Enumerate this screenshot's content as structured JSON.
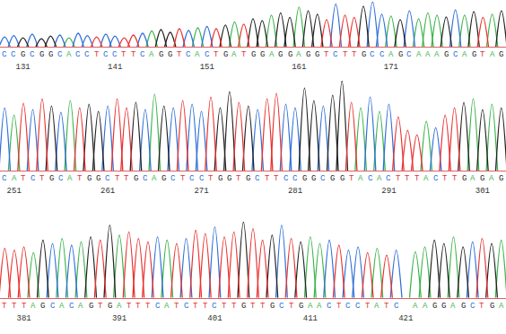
{
  "chart_data": [
    {
      "type": "line",
      "start": 129,
      "bases": "CCGCGGCACCTCCTTCAGGTCACTGATGGAGGAGGTCTTGCCAGCAAAGCAGTAG",
      "values": [
        22,
        25,
        20,
        28,
        18,
        24,
        26,
        20,
        30,
        25,
        22,
        28,
        24,
        20,
        26,
        30,
        35,
        38,
        32,
        40,
        36,
        42,
        45,
        40,
        48,
        55,
        50,
        62,
        58,
        70,
        75,
        65,
        88,
        80,
        72,
        60,
        95,
        70,
        65,
        90,
        100,
        72,
        68,
        60,
        80,
        62,
        75,
        70,
        66,
        82,
        70,
        78,
        65,
        72,
        80
      ],
      "xlim": [
        128.5,
        183.5
      ],
      "xticks": [
        131,
        141,
        151,
        161,
        171
      ],
      "ylim": [
        0,
        100
      ],
      "tick_labels": "x",
      "series": [
        {
          "name": "A",
          "color": "#3cb44b"
        },
        {
          "name": "C",
          "color": "#2e6fd8"
        },
        {
          "name": "G",
          "color": "#222222"
        },
        {
          "name": "T",
          "color": "#e8312f"
        }
      ]
    },
    {
      "type": "line",
      "start": 250,
      "bases": "CATCTGCATGGCTTGCAGCTCCTGGTGCTTCCGGCGGTACACTTTACTTGAGAG",
      "values": [
        70,
        62,
        75,
        68,
        80,
        72,
        65,
        78,
        70,
        74,
        66,
        72,
        80,
        70,
        76,
        68,
        85,
        72,
        70,
        78,
        74,
        66,
        82,
        70,
        88,
        76,
        72,
        68,
        80,
        86,
        74,
        70,
        92,
        78,
        72,
        84,
        100,
        76,
        70,
        82,
        66,
        74,
        60,
        45,
        40,
        55,
        48,
        62,
        70,
        76,
        80,
        68,
        74,
        70
      ],
      "xlim": [
        249.5,
        303.5
      ],
      "xticks": [
        251,
        261,
        271,
        281,
        291,
        301
      ],
      "ylim": [
        0,
        100
      ],
      "tick_labels": "x",
      "series": [
        {
          "name": "A",
          "color": "#3cb44b"
        },
        {
          "name": "C",
          "color": "#2e6fd8"
        },
        {
          "name": "G",
          "color": "#222222"
        },
        {
          "name": "T",
          "color": "#e8312f"
        }
      ]
    },
    {
      "type": "line",
      "start": 379,
      "bases": "TTTAGCACAGTGATTTCATCTTCTTGTTGCTGAACTCCTATC AAGGAGCTGA",
      "values": [
        60,
        58,
        62,
        55,
        70,
        66,
        72,
        64,
        68,
        74,
        70,
        88,
        76,
        80,
        72,
        68,
        74,
        70,
        66,
        72,
        82,
        78,
        86,
        74,
        80,
        92,
        84,
        70,
        76,
        88,
        72,
        68,
        74,
        66,
        70,
        64,
        58,
        62,
        55,
        60,
        52,
        58,
        null,
        56,
        62,
        70,
        66,
        74,
        62,
        68,
        72,
        66,
        70
      ],
      "xlim": [
        378.5,
        431.5
      ],
      "xticks": [
        381,
        391,
        401,
        411,
        421
      ],
      "ylim": [
        0,
        100
      ],
      "tick_labels": "x",
      "series": [
        {
          "name": "A",
          "color": "#3cb44b"
        },
        {
          "name": "C",
          "color": "#2e6fd8"
        },
        {
          "name": "G",
          "color": "#222222"
        },
        {
          "name": "T",
          "color": "#e8312f"
        }
      ]
    }
  ]
}
